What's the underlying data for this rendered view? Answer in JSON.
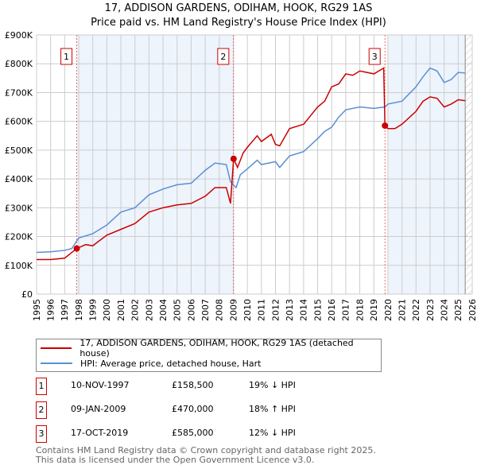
{
  "chart_data": {
    "type": "line",
    "title": "17, ADDISON GARDENS, ODIHAM, HOOK, RG29 1AS",
    "subtitle": "Price paid vs. HM Land Registry's House Price Index (HPI)",
    "xlim": [
      1995,
      2026
    ],
    "ylim": [
      0,
      900000
    ],
    "x_ticks": [
      "1995",
      "1996",
      "1997",
      "1998",
      "1999",
      "2000",
      "2001",
      "2002",
      "2003",
      "2004",
      "2005",
      "2006",
      "2007",
      "2008",
      "2009",
      "2010",
      "2011",
      "2012",
      "2013",
      "2014",
      "2015",
      "2016",
      "2017",
      "2018",
      "2019",
      "2020",
      "2021",
      "2022",
      "2023",
      "2024",
      "2025",
      "2026"
    ],
    "y_ticks": [
      {
        "v": 0,
        "label": "£0"
      },
      {
        "v": 100000,
        "label": "£100K"
      },
      {
        "v": 200000,
        "label": "£200K"
      },
      {
        "v": 300000,
        "label": "£300K"
      },
      {
        "v": 400000,
        "label": "£400K"
      },
      {
        "v": 500000,
        "label": "£500K"
      },
      {
        "v": 600000,
        "label": "£600K"
      },
      {
        "v": 700000,
        "label": "£700K"
      },
      {
        "v": 800000,
        "label": "£800K"
      },
      {
        "v": 900000,
        "label": "£900K"
      }
    ],
    "grid": true,
    "series": [
      {
        "name": "17, ADDISON GARDENS, ODIHAM, HOOK, RG29 1AS (detached house)",
        "color": "#cc0000",
        "points": [
          [
            1995,
            120
          ],
          [
            1996,
            120
          ],
          [
            1997,
            125
          ],
          [
            1997.86,
            158.5
          ],
          [
            1998.5,
            172
          ],
          [
            1999,
            168
          ],
          [
            2000,
            205
          ],
          [
            2001,
            225
          ],
          [
            2002,
            245
          ],
          [
            2003,
            285
          ],
          [
            2004,
            300
          ],
          [
            2005,
            310
          ],
          [
            2006,
            315
          ],
          [
            2007,
            340
          ],
          [
            2007.7,
            370
          ],
          [
            2008.5,
            370
          ],
          [
            2008.8,
            315
          ],
          [
            2009.02,
            470
          ],
          [
            2009.3,
            440
          ],
          [
            2009.7,
            490
          ],
          [
            2010,
            510
          ],
          [
            2010.7,
            550
          ],
          [
            2011,
            530
          ],
          [
            2011.7,
            555
          ],
          [
            2012,
            520
          ],
          [
            2012.3,
            515
          ],
          [
            2013,
            575
          ],
          [
            2014,
            590
          ],
          [
            2015,
            650
          ],
          [
            2015.5,
            670
          ],
          [
            2016,
            720
          ],
          [
            2016.5,
            730
          ],
          [
            2017,
            765
          ],
          [
            2017.5,
            760
          ],
          [
            2018,
            775
          ],
          [
            2019,
            765
          ],
          [
            2019.7,
            785
          ],
          [
            2019.79,
            585
          ],
          [
            2020,
            575
          ],
          [
            2020.5,
            575
          ],
          [
            2021,
            590
          ],
          [
            2022,
            635
          ],
          [
            2022.5,
            670
          ],
          [
            2023,
            685
          ],
          [
            2023.5,
            680
          ],
          [
            2024,
            650
          ],
          [
            2024.5,
            660
          ],
          [
            2025,
            675
          ],
          [
            2025.5,
            672
          ]
        ]
      },
      {
        "name": "HPI: Average price, detached house, Hart",
        "color": "#5b8fd4",
        "points": [
          [
            1995,
            145
          ],
          [
            1996,
            147
          ],
          [
            1997,
            152
          ],
          [
            1997.5,
            158
          ],
          [
            1998,
            195
          ],
          [
            1999,
            210
          ],
          [
            2000,
            240
          ],
          [
            2001,
            285
          ],
          [
            2002,
            300
          ],
          [
            2003,
            345
          ],
          [
            2004,
            365
          ],
          [
            2005,
            380
          ],
          [
            2006,
            385
          ],
          [
            2007,
            430
          ],
          [
            2007.7,
            455
          ],
          [
            2008.5,
            450
          ],
          [
            2008.8,
            390
          ],
          [
            2009.2,
            370
          ],
          [
            2009.5,
            415
          ],
          [
            2010,
            435
          ],
          [
            2010.7,
            465
          ],
          [
            2011,
            450
          ],
          [
            2012,
            460
          ],
          [
            2012.3,
            440
          ],
          [
            2013,
            480
          ],
          [
            2014,
            495
          ],
          [
            2015,
            540
          ],
          [
            2015.5,
            565
          ],
          [
            2016,
            580
          ],
          [
            2016.5,
            615
          ],
          [
            2017,
            640
          ],
          [
            2018,
            650
          ],
          [
            2019,
            645
          ],
          [
            2019.8,
            650
          ],
          [
            2020,
            660
          ],
          [
            2021,
            670
          ],
          [
            2022,
            720
          ],
          [
            2022.5,
            755
          ],
          [
            2023,
            785
          ],
          [
            2023.5,
            775
          ],
          [
            2024,
            735
          ],
          [
            2024.5,
            745
          ],
          [
            2025,
            770
          ],
          [
            2025.5,
            768
          ]
        ]
      }
    ],
    "sales": [
      {
        "n": "1",
        "x": 1997.86,
        "y": 158500,
        "date": "10-NOV-1997",
        "price": "£158,500",
        "hpi": "19% ↓ HPI"
      },
      {
        "n": "2",
        "x": 2009.02,
        "y": 470000,
        "date": "09-JAN-2009",
        "price": "£470,000",
        "hpi": "18% ↑ HPI"
      },
      {
        "n": "3",
        "x": 2019.79,
        "y": 585000,
        "date": "17-OCT-2019",
        "price": "£585,000",
        "hpi": "12% ↓ HPI"
      }
    ],
    "shaded_ranges": [
      [
        1997.86,
        2009.02
      ],
      [
        2020.0,
        2025.5
      ]
    ],
    "forecast_hatch_from": 2025.5,
    "legend_placement": "below"
  },
  "footer": {
    "line1": "Contains HM Land Registry data © Crown copyright and database right 2025.",
    "line2": "This data is licensed under the Open Government Licence v3.0."
  }
}
